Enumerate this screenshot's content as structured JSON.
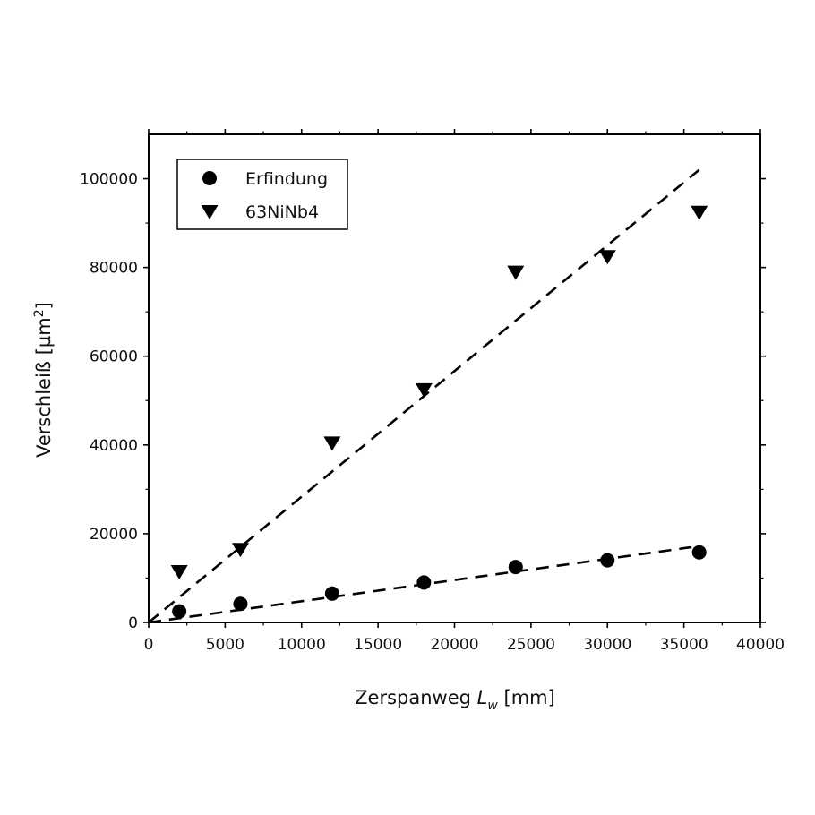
{
  "chart_data": {
    "type": "scatter",
    "xlabel": {
      "main": "Zerspanweg ",
      "var": "L",
      "sub": "w",
      "unit": " [mm]"
    },
    "ylabel": {
      "main": "Verschleiß [µm",
      "sup": "2",
      "close": "]"
    },
    "xlim": [
      0,
      40000
    ],
    "ylim": [
      0,
      110000
    ],
    "xticks": [
      0,
      5000,
      10000,
      15000,
      20000,
      25000,
      30000,
      35000,
      40000
    ],
    "yticks": [
      0,
      20000,
      40000,
      60000,
      80000,
      100000
    ],
    "grid": false,
    "legend_position": "top-left",
    "series": [
      {
        "name": "Erfindung",
        "marker": "circle",
        "color": "#000000",
        "points": [
          [
            2000,
            2500
          ],
          [
            6000,
            4200
          ],
          [
            12000,
            6500
          ],
          [
            18000,
            9000
          ],
          [
            24000,
            12500
          ],
          [
            30000,
            14000
          ],
          [
            36000,
            15800
          ]
        ],
        "fit": {
          "x": [
            0,
            36000
          ],
          "y": [
            0,
            17200
          ],
          "style": "dashed"
        }
      },
      {
        "name": "63NiNb4",
        "marker": "triangle-down",
        "color": "#000000",
        "points": [
          [
            2000,
            11500
          ],
          [
            6000,
            16500
          ],
          [
            12000,
            40500
          ],
          [
            18000,
            52500
          ],
          [
            24000,
            79000
          ],
          [
            30000,
            82500
          ],
          [
            36000,
            92500
          ]
        ],
        "fit": {
          "x": [
            0,
            36000
          ],
          "y": [
            0,
            102000
          ],
          "style": "dashed"
        }
      }
    ]
  }
}
